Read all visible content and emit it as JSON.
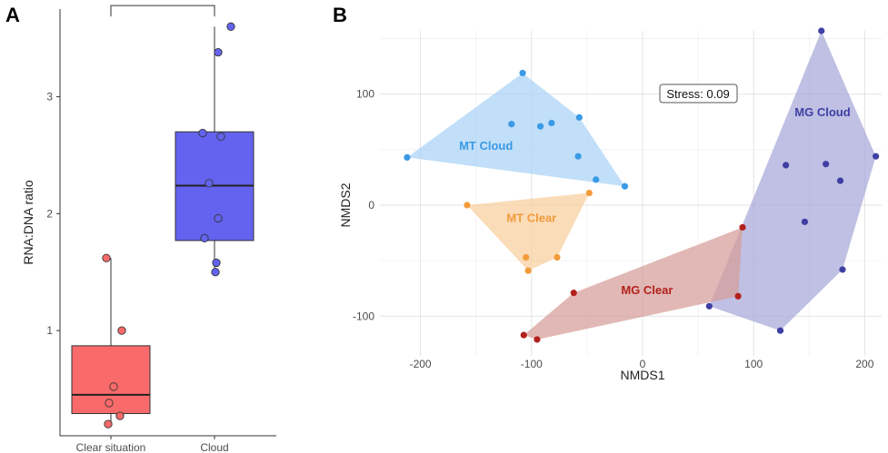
{
  "panels": {
    "a_letter": "A",
    "b_letter": "B"
  },
  "chart_data": [
    {
      "type": "box",
      "xlabel": "",
      "ylabel": "RNA:DNA ratio",
      "categories": [
        "Clear situation",
        "Cloud"
      ],
      "ylim": [
        0.1,
        3.75
      ],
      "yticks": [
        1,
        2,
        3
      ],
      "grid": false,
      "significance": {
        "label": "**",
        "between": [
          "Clear situation",
          "Cloud"
        ],
        "y": 3.78
      },
      "boxes": [
        {
          "category": "Clear situation",
          "color": "#f96a6a",
          "q1": 0.29,
          "median": 0.45,
          "q3": 0.87,
          "whisker_low": 0.2,
          "whisker_high": 1.62
        },
        {
          "category": "Cloud",
          "color": "#6363f0",
          "q1": 1.77,
          "median": 2.24,
          "q3": 2.7,
          "whisker_low": 1.5,
          "whisker_high": 3.6
        }
      ],
      "points": [
        {
          "category": "Clear situation",
          "values": [
            1.62,
            1.0,
            0.52,
            0.38,
            0.27,
            0.2
          ],
          "jitter": [
            -0.05,
            0.12,
            0.03,
            -0.02,
            0.1,
            -0.03
          ]
        },
        {
          "category": "Cloud",
          "values": [
            3.6,
            3.38,
            2.69,
            2.66,
            2.26,
            1.96,
            1.79,
            1.58,
            1.5
          ],
          "jitter": [
            0.18,
            0.04,
            -0.13,
            0.07,
            -0.06,
            0.04,
            -0.11,
            0.02,
            0.01
          ]
        }
      ]
    },
    {
      "type": "scatter",
      "xlabel": "NMDS1",
      "ylabel": "NMDS2",
      "xlim": [
        -235,
        215
      ],
      "ylim": [
        -140,
        160
      ],
      "xticks": [
        -200,
        -100,
        0,
        100,
        200
      ],
      "yticks": [
        -100,
        0,
        100
      ],
      "grid": true,
      "annotation": "Stress:  0.09",
      "series": [
        {
          "name": "MT Cloud",
          "color": "#3a9ae6",
          "fill": "#a9d3f5",
          "x": [
            -212,
            -108,
            -118,
            -92,
            -82,
            -57,
            -58,
            -42,
            -16
          ],
          "y": [
            43,
            119,
            73,
            71,
            74,
            79,
            44,
            23,
            17
          ],
          "label_pos": [
            -141,
            50
          ]
        },
        {
          "name": "MT Clear",
          "color": "#f39b3b",
          "fill": "#f8cf9e",
          "x": [
            -158,
            -48,
            -105,
            -77,
            -103
          ],
          "y": [
            0,
            11,
            -47,
            -47,
            -59
          ],
          "label_pos": [
            -100,
            -15
          ]
        },
        {
          "name": "MG Clear",
          "color": "#b3211d",
          "fill": "#d69d98",
          "x": [
            90,
            -62,
            86,
            -107,
            -95
          ],
          "y": [
            -20,
            -79,
            -82,
            -117,
            -121
          ],
          "label_pos": [
            4,
            -80
          ]
        },
        {
          "name": "MG Cloud",
          "color": "#3f3fa3",
          "fill": "#a6a8d8",
          "x": [
            161,
            210,
            129,
            165,
            178,
            146,
            180,
            60,
            124
          ],
          "y": [
            157,
            44,
            36,
            37,
            22,
            -15,
            -58,
            -91,
            -113
          ],
          "label_pos": [
            162,
            80
          ]
        }
      ]
    }
  ]
}
